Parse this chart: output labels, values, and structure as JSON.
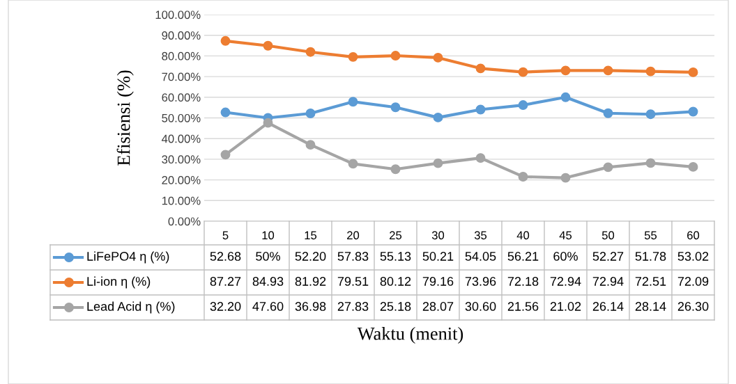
{
  "chart_data": {
    "type": "line",
    "ylabel": "Efisiensi (%)",
    "xlabel": "Waktu (menit)",
    "categories": [
      "5",
      "10",
      "15",
      "20",
      "25",
      "30",
      "35",
      "40",
      "45",
      "50",
      "55",
      "60"
    ],
    "ylim": [
      0,
      100
    ],
    "yticks": [
      {
        "value": 0,
        "label": "0.00%"
      },
      {
        "value": 10,
        "label": "10.00%"
      },
      {
        "value": 20,
        "label": "20.00%"
      },
      {
        "value": 30,
        "label": "30.00%"
      },
      {
        "value": 40,
        "label": "40.00%"
      },
      {
        "value": 50,
        "label": "50.00%"
      },
      {
        "value": 60,
        "label": "60.00%"
      },
      {
        "value": 70,
        "label": "70.00%"
      },
      {
        "value": 80,
        "label": "80.00%"
      },
      {
        "value": 90,
        "label": "90.00%"
      },
      {
        "value": 100,
        "label": "100.00%"
      }
    ],
    "grid": "y",
    "legend": "bottom",
    "marker": "circle",
    "line_style": "solid",
    "series": [
      {
        "name": "LiFePO4 η (%)",
        "color": "#5b9bd5",
        "values": [
          52.68,
          50,
          52.2,
          57.83,
          55.13,
          50.21,
          54.05,
          56.21,
          60,
          52.27,
          51.78,
          53.02
        ],
        "value_labels": [
          "52.68",
          "50%",
          "52.20",
          "57.83",
          "55.13",
          "50.21",
          "54.05",
          "56.21",
          "60%",
          "52.27",
          "51.78",
          "53.02"
        ]
      },
      {
        "name": "Li-ion η (%)",
        "color": "#ed7d31",
        "values": [
          87.27,
          84.93,
          81.92,
          79.51,
          80.12,
          79.16,
          73.96,
          72.18,
          72.94,
          72.94,
          72.51,
          72.09
        ],
        "value_labels": [
          "87.27",
          "84.93",
          "81.92",
          "79.51",
          "80.12",
          "79.16",
          "73.96",
          "72.18",
          "72.94",
          "72.94",
          "72.51",
          "72.09"
        ]
      },
      {
        "name": "Lead Acid η (%)",
        "color": "#a5a5a5",
        "values": [
          32.2,
          47.6,
          36.98,
          27.83,
          25.18,
          28.07,
          30.6,
          21.56,
          21.02,
          26.14,
          28.14,
          26.3
        ],
        "value_labels": [
          "32.20",
          "47.60",
          "36.98",
          "27.83",
          "25.18",
          "28.07",
          "30.60",
          "21.56",
          "21.02",
          "26.14",
          "28.14",
          "26.30"
        ]
      }
    ]
  }
}
